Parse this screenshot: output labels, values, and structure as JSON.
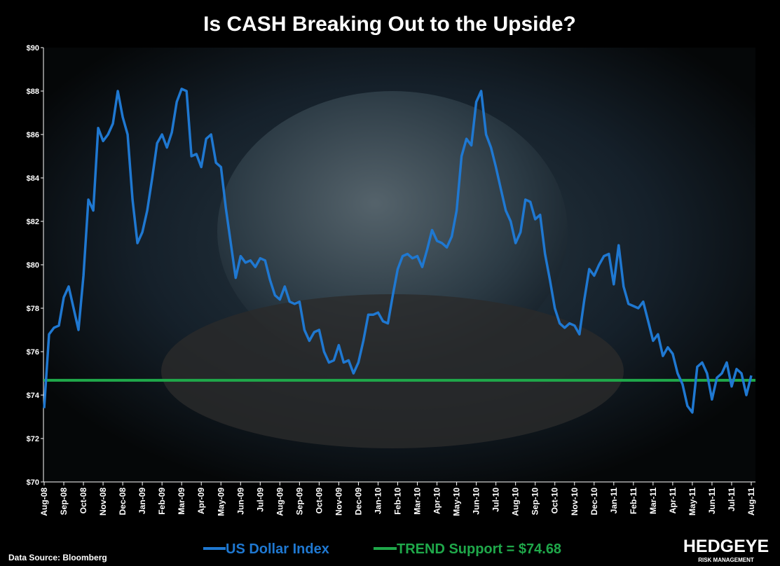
{
  "chart_data": {
    "type": "line",
    "title": "Is CASH Breaking Out to the Upside?",
    "source": "Data Source: Bloomberg",
    "logo": {
      "name": "HEDGEYE",
      "tagline": "RISK MANAGEMENT"
    },
    "categories": [
      "Aug-08",
      null,
      null,
      null,
      "Sep-08",
      null,
      null,
      null,
      "Oct-08",
      null,
      null,
      null,
      "Nov-08",
      null,
      null,
      null,
      "Dec-08",
      null,
      null,
      null,
      "Jan-09",
      null,
      null,
      null,
      "Feb-09",
      null,
      null,
      null,
      "Mar-09",
      null,
      null,
      null,
      "Apr-09",
      null,
      null,
      null,
      "May-09",
      null,
      null,
      null,
      "Jun-09",
      null,
      null,
      null,
      "Jul-09",
      null,
      null,
      null,
      "Aug-09",
      null,
      null,
      null,
      "Sep-09",
      null,
      null,
      null,
      "Oct-09",
      null,
      null,
      null,
      "Nov-09",
      null,
      null,
      null,
      "Dec-09",
      null,
      null,
      null,
      "Jan-10",
      null,
      null,
      null,
      "Feb-10",
      null,
      null,
      null,
      "Mar-10",
      null,
      null,
      null,
      "Apr-10",
      null,
      null,
      null,
      "May-10",
      null,
      null,
      null,
      "Jun-10",
      null,
      null,
      null,
      "Jul-10",
      null,
      null,
      null,
      "Aug-10",
      null,
      null,
      null,
      "Sep-10",
      null,
      null,
      null,
      "Oct-10",
      null,
      null,
      null,
      "Nov-10",
      null,
      null,
      null,
      "Dec-10",
      null,
      null,
      null,
      "Jan-11",
      null,
      null,
      null,
      "Feb-11",
      null,
      null,
      null,
      "Mar-11",
      null,
      null,
      null,
      "Apr-11",
      null,
      null,
      null,
      "May-11",
      null,
      null,
      null,
      "Jun-11",
      null,
      null,
      null,
      "Jul-11",
      null,
      null,
      null,
      "Aug-11"
    ],
    "series": [
      {
        "name": "US Dollar Index",
        "color": "#1f78d1",
        "values": [
          73.4,
          76.8,
          77.1,
          77.2,
          78.5,
          79.0,
          78.0,
          77.0,
          79.5,
          83.0,
          82.5,
          86.3,
          85.7,
          86.0,
          86.5,
          88.0,
          86.8,
          86.0,
          83.0,
          81.0,
          81.5,
          82.5,
          84.0,
          85.6,
          86.0,
          85.4,
          86.1,
          87.5,
          88.1,
          88.0,
          85.0,
          85.1,
          84.5,
          85.8,
          86.0,
          84.7,
          84.5,
          82.6,
          81.0,
          79.4,
          80.4,
          80.1,
          80.2,
          79.9,
          80.3,
          80.2,
          79.3,
          78.6,
          78.4,
          79.0,
          78.3,
          78.2,
          78.3,
          77.0,
          76.5,
          76.9,
          77.0,
          76.0,
          75.5,
          75.6,
          76.3,
          75.5,
          75.6,
          75.0,
          75.5,
          76.5,
          77.7,
          77.7,
          77.8,
          77.4,
          77.3,
          78.6,
          79.8,
          80.4,
          80.5,
          80.3,
          80.4,
          79.9,
          80.7,
          81.6,
          81.1,
          81.0,
          80.8,
          81.3,
          82.5,
          85.0,
          85.8,
          85.5,
          87.5,
          88.0,
          86.0,
          85.4,
          84.5,
          83.5,
          82.5,
          82.0,
          81.0,
          81.5,
          83.0,
          82.9,
          82.1,
          82.3,
          80.5,
          79.3,
          78.0,
          77.3,
          77.1,
          77.3,
          77.2,
          76.8,
          78.4,
          79.8,
          79.5,
          80.0,
          80.4,
          80.5,
          79.1,
          80.9,
          79.0,
          78.2,
          78.1,
          78.0,
          78.3,
          77.4,
          76.5,
          76.8,
          75.8,
          76.2,
          75.9,
          75.0,
          74.5,
          73.5,
          73.2,
          75.3,
          75.5,
          75.0,
          73.8,
          74.8,
          75.0,
          75.5,
          74.4,
          75.2,
          75.0,
          74.0,
          74.9
        ]
      }
    ],
    "reference_line": {
      "name": "TREND Support = $74.68",
      "value": 74.68,
      "color": "#1fa84a"
    },
    "ylim": [
      70,
      90
    ],
    "yticks": [
      {
        "value": 70,
        "label": "$70"
      },
      {
        "value": 72,
        "label": "$72"
      },
      {
        "value": 74,
        "label": "$74"
      },
      {
        "value": 76,
        "label": "$76"
      },
      {
        "value": 78,
        "label": "$78"
      },
      {
        "value": 80,
        "label": "$80"
      },
      {
        "value": 82,
        "label": "$82"
      },
      {
        "value": 84,
        "label": "$84"
      },
      {
        "value": 86,
        "label": "$86"
      },
      {
        "value": 88,
        "label": "$88"
      },
      {
        "value": 90,
        "label": "$90"
      }
    ],
    "grid": false
  }
}
